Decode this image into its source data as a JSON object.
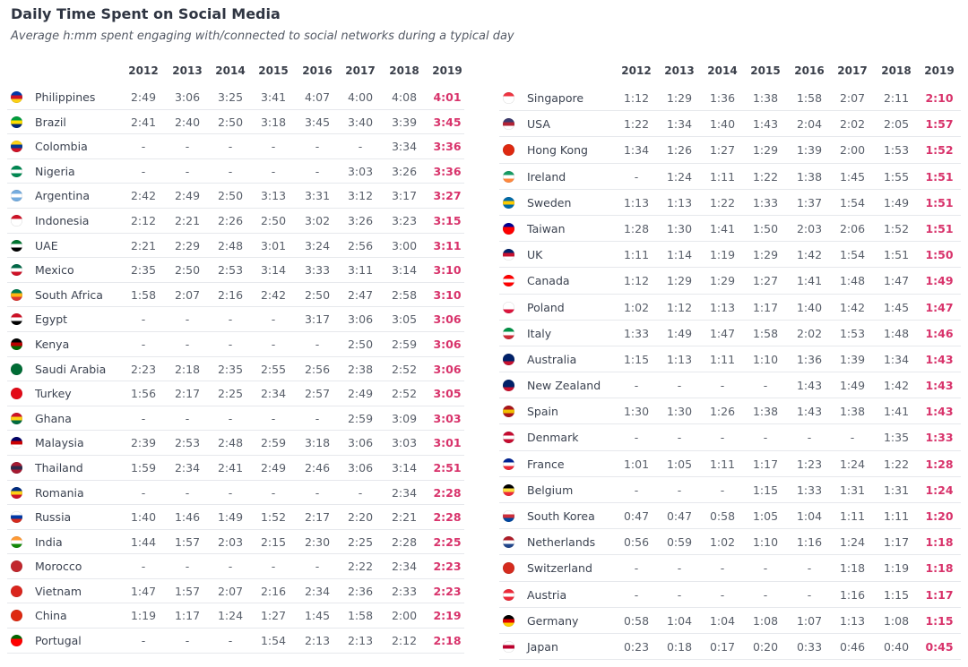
{
  "title": "Daily Time Spent on Social Media",
  "subtitle": "Average h:mm spent engaging with/connected to social networks during a typical day",
  "colors": {
    "highlight": "#d8336b",
    "text": "#3b4250",
    "grid": "#e6e8ec"
  },
  "chart_data": {
    "type": "table",
    "columns": [
      "2012",
      "2013",
      "2014",
      "2015",
      "2016",
      "2017",
      "2018",
      "2019"
    ],
    "tables": [
      {
        "rows": [
          {
            "country": "Philippines",
            "flag": [
              "#0038a8",
              "#ce1126",
              "#fcd116"
            ],
            "values": [
              "2:49",
              "3:06",
              "3:25",
              "3:41",
              "4:07",
              "4:00",
              "4:08",
              "4:01"
            ]
          },
          {
            "country": "Brazil",
            "flag": [
              "#009c3b",
              "#ffdf00",
              "#002776"
            ],
            "values": [
              "2:41",
              "2:40",
              "2:50",
              "3:18",
              "3:45",
              "3:40",
              "3:39",
              "3:45"
            ]
          },
          {
            "country": "Colombia",
            "flag": [
              "#fcd116",
              "#003893",
              "#ce1126"
            ],
            "values": [
              "-",
              "-",
              "-",
              "-",
              "-",
              "-",
              "3:34",
              "3:36"
            ]
          },
          {
            "country": "Nigeria",
            "flag": [
              "#008751",
              "#ffffff",
              "#008751"
            ],
            "values": [
              "-",
              "-",
              "-",
              "-",
              "-",
              "3:03",
              "3:26",
              "3:36"
            ]
          },
          {
            "country": "Argentina",
            "flag": [
              "#74acdf",
              "#ffffff",
              "#74acdf"
            ],
            "values": [
              "2:42",
              "2:49",
              "2:50",
              "3:13",
              "3:31",
              "3:12",
              "3:17",
              "3:27"
            ]
          },
          {
            "country": "Indonesia",
            "flag": [
              "#ce1126",
              "#ffffff",
              "#ffffff"
            ],
            "values": [
              "2:12",
              "2:21",
              "2:26",
              "2:50",
              "3:02",
              "3:26",
              "3:23",
              "3:15"
            ]
          },
          {
            "country": "UAE",
            "flag": [
              "#00732f",
              "#ffffff",
              "#000000"
            ],
            "values": [
              "2:21",
              "2:29",
              "2:48",
              "3:01",
              "3:24",
              "2:56",
              "3:00",
              "3:11"
            ]
          },
          {
            "country": "Mexico",
            "flag": [
              "#006847",
              "#ffffff",
              "#ce1126"
            ],
            "values": [
              "2:35",
              "2:50",
              "2:53",
              "3:14",
              "3:33",
              "3:11",
              "3:14",
              "3:10"
            ]
          },
          {
            "country": "South Africa",
            "flag": [
              "#007a4d",
              "#ffb612",
              "#de3831"
            ],
            "values": [
              "1:58",
              "2:07",
              "2:16",
              "2:42",
              "2:50",
              "2:47",
              "2:58",
              "3:10"
            ]
          },
          {
            "country": "Egypt",
            "flag": [
              "#ce1126",
              "#ffffff",
              "#000000"
            ],
            "values": [
              "-",
              "-",
              "-",
              "-",
              "3:17",
              "3:06",
              "3:05",
              "3:06"
            ]
          },
          {
            "country": "Kenya",
            "flag": [
              "#000000",
              "#bb0000",
              "#006600"
            ],
            "values": [
              "-",
              "-",
              "-",
              "-",
              "-",
              "2:50",
              "2:59",
              "3:06"
            ]
          },
          {
            "country": "Saudi Arabia",
            "flag": [
              "#006c35",
              "#006c35",
              "#006c35"
            ],
            "values": [
              "2:23",
              "2:18",
              "2:35",
              "2:55",
              "2:56",
              "2:38",
              "2:52",
              "3:06"
            ]
          },
          {
            "country": "Turkey",
            "flag": [
              "#e30a17",
              "#e30a17",
              "#e30a17"
            ],
            "values": [
              "1:56",
              "2:17",
              "2:25",
              "2:34",
              "2:57",
              "2:49",
              "2:52",
              "3:05"
            ]
          },
          {
            "country": "Ghana",
            "flag": [
              "#ce1126",
              "#fcd116",
              "#006b3f"
            ],
            "values": [
              "-",
              "-",
              "-",
              "-",
              "-",
              "2:59",
              "3:09",
              "3:03"
            ]
          },
          {
            "country": "Malaysia",
            "flag": [
              "#010066",
              "#cc0001",
              "#ffffff"
            ],
            "values": [
              "2:39",
              "2:53",
              "2:48",
              "2:59",
              "3:18",
              "3:06",
              "3:03",
              "3:01"
            ]
          },
          {
            "country": "Thailand",
            "flag": [
              "#a51931",
              "#2d2a4a",
              "#a51931"
            ],
            "values": [
              "1:59",
              "2:34",
              "2:41",
              "2:49",
              "2:46",
              "3:06",
              "3:14",
              "2:51"
            ]
          },
          {
            "country": "Romania",
            "flag": [
              "#002b7f",
              "#fcd116",
              "#ce1126"
            ],
            "values": [
              "-",
              "-",
              "-",
              "-",
              "-",
              "-",
              "2:34",
              "2:28"
            ]
          },
          {
            "country": "Russia",
            "flag": [
              "#ffffff",
              "#0039a6",
              "#d52b1e"
            ],
            "values": [
              "1:40",
              "1:46",
              "1:49",
              "1:52",
              "2:17",
              "2:20",
              "2:21",
              "2:28"
            ]
          },
          {
            "country": "India",
            "flag": [
              "#ff9933",
              "#ffffff",
              "#138808"
            ],
            "values": [
              "1:44",
              "1:57",
              "2:03",
              "2:15",
              "2:30",
              "2:25",
              "2:28",
              "2:25"
            ]
          },
          {
            "country": "Morocco",
            "flag": [
              "#c1272d",
              "#c1272d",
              "#c1272d"
            ],
            "values": [
              "-",
              "-",
              "-",
              "-",
              "-",
              "2:22",
              "2:34",
              "2:23"
            ]
          },
          {
            "country": "Vietnam",
            "flag": [
              "#da251d",
              "#da251d",
              "#da251d"
            ],
            "values": [
              "1:47",
              "1:57",
              "2:07",
              "2:16",
              "2:34",
              "2:36",
              "2:33",
              "2:23"
            ]
          },
          {
            "country": "China",
            "flag": [
              "#de2910",
              "#de2910",
              "#de2910"
            ],
            "values": [
              "1:19",
              "1:17",
              "1:24",
              "1:27",
              "1:45",
              "1:58",
              "2:00",
              "2:19"
            ]
          },
          {
            "country": "Portugal",
            "flag": [
              "#006600",
              "#ff0000",
              "#ff0000"
            ],
            "values": [
              "-",
              "-",
              "-",
              "1:54",
              "2:13",
              "2:13",
              "2:12",
              "2:18"
            ]
          }
        ]
      },
      {
        "rows": [
          {
            "country": "Singapore",
            "flag": [
              "#ef3340",
              "#ffffff",
              "#ffffff"
            ],
            "values": [
              "1:12",
              "1:29",
              "1:36",
              "1:38",
              "1:58",
              "2:07",
              "2:11",
              "2:10"
            ]
          },
          {
            "country": "USA",
            "flag": [
              "#3c3b6e",
              "#b22234",
              "#ffffff"
            ],
            "values": [
              "1:22",
              "1:34",
              "1:40",
              "1:43",
              "2:04",
              "2:02",
              "2:05",
              "1:57"
            ]
          },
          {
            "country": "Hong Kong",
            "flag": [
              "#de2910",
              "#de2910",
              "#de2910"
            ],
            "values": [
              "1:34",
              "1:26",
              "1:27",
              "1:29",
              "1:39",
              "2:00",
              "1:53",
              "1:52"
            ]
          },
          {
            "country": "Ireland",
            "flag": [
              "#169b62",
              "#ffffff",
              "#ff883e"
            ],
            "values": [
              "-",
              "1:24",
              "1:11",
              "1:22",
              "1:38",
              "1:45",
              "1:55",
              "1:51"
            ]
          },
          {
            "country": "Sweden",
            "flag": [
              "#006aa7",
              "#fecc00",
              "#006aa7"
            ],
            "values": [
              "1:13",
              "1:13",
              "1:22",
              "1:33",
              "1:37",
              "1:54",
              "1:49",
              "1:51"
            ]
          },
          {
            "country": "Taiwan",
            "flag": [
              "#000095",
              "#fe0000",
              "#fe0000"
            ],
            "values": [
              "1:28",
              "1:30",
              "1:41",
              "1:50",
              "2:03",
              "2:06",
              "1:52",
              "1:51"
            ]
          },
          {
            "country": "UK",
            "flag": [
              "#012169",
              "#c8102e",
              "#ffffff"
            ],
            "values": [
              "1:11",
              "1:14",
              "1:19",
              "1:29",
              "1:42",
              "1:54",
              "1:51",
              "1:50"
            ]
          },
          {
            "country": "Canada",
            "flag": [
              "#ff0000",
              "#ffffff",
              "#ff0000"
            ],
            "values": [
              "1:12",
              "1:29",
              "1:29",
              "1:27",
              "1:41",
              "1:48",
              "1:47",
              "1:49"
            ]
          },
          {
            "country": "Poland",
            "flag": [
              "#ffffff",
              "#ffffff",
              "#dc143c"
            ],
            "values": [
              "1:02",
              "1:12",
              "1:13",
              "1:17",
              "1:40",
              "1:42",
              "1:45",
              "1:47"
            ]
          },
          {
            "country": "Italy",
            "flag": [
              "#009246",
              "#ffffff",
              "#ce2b37"
            ],
            "values": [
              "1:33",
              "1:49",
              "1:47",
              "1:58",
              "2:02",
              "1:53",
              "1:48",
              "1:46"
            ]
          },
          {
            "country": "Australia",
            "flag": [
              "#012169",
              "#012169",
              "#c8102e"
            ],
            "values": [
              "1:15",
              "1:13",
              "1:11",
              "1:10",
              "1:36",
              "1:39",
              "1:34",
              "1:43"
            ]
          },
          {
            "country": "New Zealand",
            "flag": [
              "#012169",
              "#012169",
              "#c8102e"
            ],
            "values": [
              "-",
              "-",
              "-",
              "-",
              "1:43",
              "1:49",
              "1:42",
              "1:43"
            ]
          },
          {
            "country": "Spain",
            "flag": [
              "#aa151b",
              "#f1bf00",
              "#aa151b"
            ],
            "values": [
              "1:30",
              "1:30",
              "1:26",
              "1:38",
              "1:43",
              "1:38",
              "1:41",
              "1:43"
            ]
          },
          {
            "country": "Denmark",
            "flag": [
              "#c60c30",
              "#ffffff",
              "#c60c30"
            ],
            "values": [
              "-",
              "-",
              "-",
              "-",
              "-",
              "-",
              "1:35",
              "1:33"
            ]
          },
          {
            "country": "France",
            "flag": [
              "#002395",
              "#ffffff",
              "#ed2939"
            ],
            "values": [
              "1:01",
              "1:05",
              "1:11",
              "1:17",
              "1:23",
              "1:24",
              "1:22",
              "1:28"
            ]
          },
          {
            "country": "Belgium",
            "flag": [
              "#000000",
              "#fae042",
              "#ed2939"
            ],
            "values": [
              "-",
              "-",
              "-",
              "1:15",
              "1:33",
              "1:31",
              "1:31",
              "1:24"
            ]
          },
          {
            "country": "South Korea",
            "flag": [
              "#ffffff",
              "#cd2e3a",
              "#0047a0"
            ],
            "values": [
              "0:47",
              "0:47",
              "0:58",
              "1:05",
              "1:04",
              "1:11",
              "1:11",
              "1:20"
            ]
          },
          {
            "country": "Netherlands",
            "flag": [
              "#ae1c28",
              "#ffffff",
              "#21468b"
            ],
            "values": [
              "0:56",
              "0:59",
              "1:02",
              "1:10",
              "1:16",
              "1:24",
              "1:17",
              "1:18"
            ]
          },
          {
            "country": "Switzerland",
            "flag": [
              "#d52b1e",
              "#d52b1e",
              "#d52b1e"
            ],
            "values": [
              "-",
              "-",
              "-",
              "-",
              "-",
              "1:18",
              "1:19",
              "1:18"
            ]
          },
          {
            "country": "Austria",
            "flag": [
              "#ed2939",
              "#ffffff",
              "#ed2939"
            ],
            "values": [
              "-",
              "-",
              "-",
              "-",
              "-",
              "1:16",
              "1:15",
              "1:17"
            ]
          },
          {
            "country": "Germany",
            "flag": [
              "#000000",
              "#dd0000",
              "#ffce00"
            ],
            "values": [
              "0:58",
              "1:04",
              "1:04",
              "1:08",
              "1:07",
              "1:13",
              "1:08",
              "1:15"
            ]
          },
          {
            "country": "Japan",
            "flag": [
              "#ffffff",
              "#bc002d",
              "#ffffff"
            ],
            "values": [
              "0:23",
              "0:18",
              "0:17",
              "0:20",
              "0:33",
              "0:46",
              "0:40",
              "0:45"
            ]
          }
        ]
      }
    ]
  }
}
